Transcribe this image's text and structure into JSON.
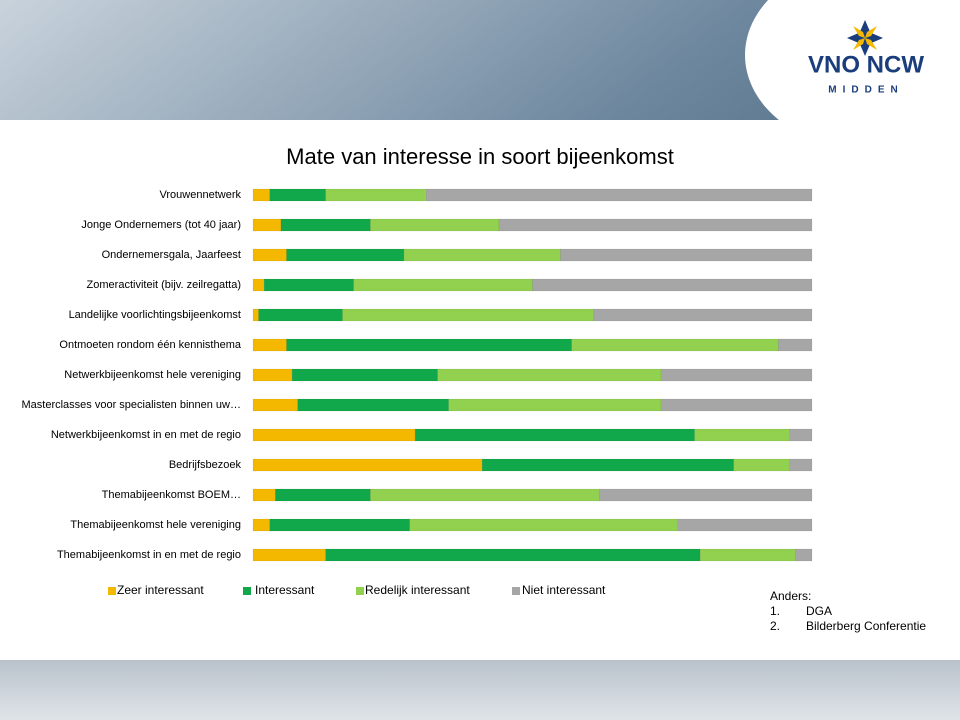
{
  "chart_data": {
    "type": "bar",
    "orientation": "horizontal",
    "stacked": true,
    "title": "Mate van interesse in soort bijeenkomst",
    "categories": [
      "Vrouwennetwerk",
      "Jonge Ondernemers (tot 40 jaar)",
      "Ondernemersgala, Jaarfeest",
      "Zomeractiviteit (bijv. zeilregatta)",
      "Landelijke voorlichtingsbijeenkomst",
      "Ontmoeten rondom één kennisthema",
      "Netwerkbijeenkomst hele vereniging",
      "Masterclasses voor specialisten binnen uw…",
      "Netwerkbijeenkomst in en met de regio",
      "Bedrijfsbezoek",
      "Themabijeenkomst BOEM…",
      "Themabijeenkomst hele vereniging",
      "Themabijeenkomst in en met de regio"
    ],
    "series": [
      {
        "name": "Zeer interessant",
        "color": "#f5b800",
        "values": [
          3,
          5,
          6,
          2,
          1,
          6,
          7,
          8,
          29,
          41,
          4,
          3,
          13
        ]
      },
      {
        "name": "Interessant",
        "color": "#10a84a",
        "values": [
          10,
          16,
          21,
          16,
          15,
          51,
          26,
          27,
          50,
          45,
          17,
          25,
          67
        ]
      },
      {
        "name": "Redelijk interessant",
        "color": "#92d050",
        "values": [
          18,
          23,
          28,
          32,
          45,
          37,
          40,
          38,
          17,
          10,
          41,
          48,
          17
        ]
      },
      {
        "name": "Niet interessant",
        "color": "#a6a6a6",
        "values": [
          69,
          56,
          45,
          50,
          39,
          6,
          27,
          27,
          4,
          4,
          38,
          24,
          3
        ]
      }
    ],
    "xlim": [
      0,
      100
    ],
    "legend": "bottom"
  },
  "note": {
    "heading": "Anders:",
    "items": [
      {
        "num": "1.",
        "text": "DGA"
      },
      {
        "num": "2.",
        "text": "Bilderberg Conferentie"
      }
    ]
  },
  "logo": {
    "name": "VNO NCW",
    "region": "MIDDEN"
  }
}
